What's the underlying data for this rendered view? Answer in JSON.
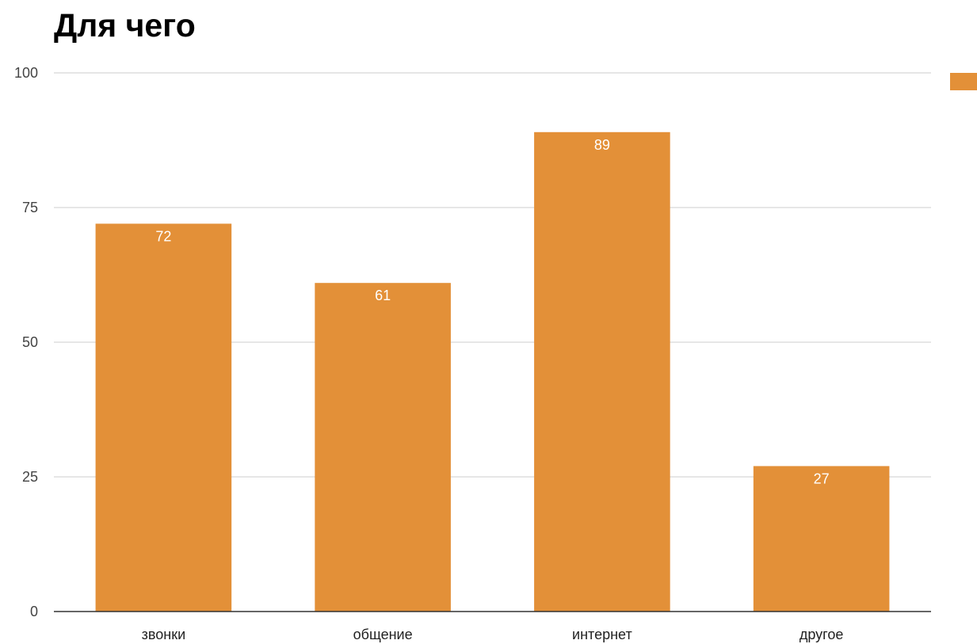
{
  "chart_data": {
    "type": "bar",
    "title": "Для чего",
    "categories": [
      "звонки",
      "общение",
      "интернет",
      "другое"
    ],
    "series": [
      {
        "values": [
          72,
          61,
          89,
          27
        ]
      }
    ],
    "ylim": [
      0,
      100
    ],
    "yticks": [
      "0",
      "25",
      "50",
      "75",
      "100"
    ],
    "ytick_values": [
      0,
      25,
      50,
      75,
      100
    ],
    "data_labels": [
      "72",
      "61",
      "89",
      "27"
    ],
    "grid": true,
    "legend_position": "top-right",
    "xlabel": "",
    "ylabel": ""
  },
  "colors": {
    "bar": "#e39038",
    "grid": "#cccccc",
    "axis": "#333333",
    "legend_swatch": "#e39038"
  }
}
